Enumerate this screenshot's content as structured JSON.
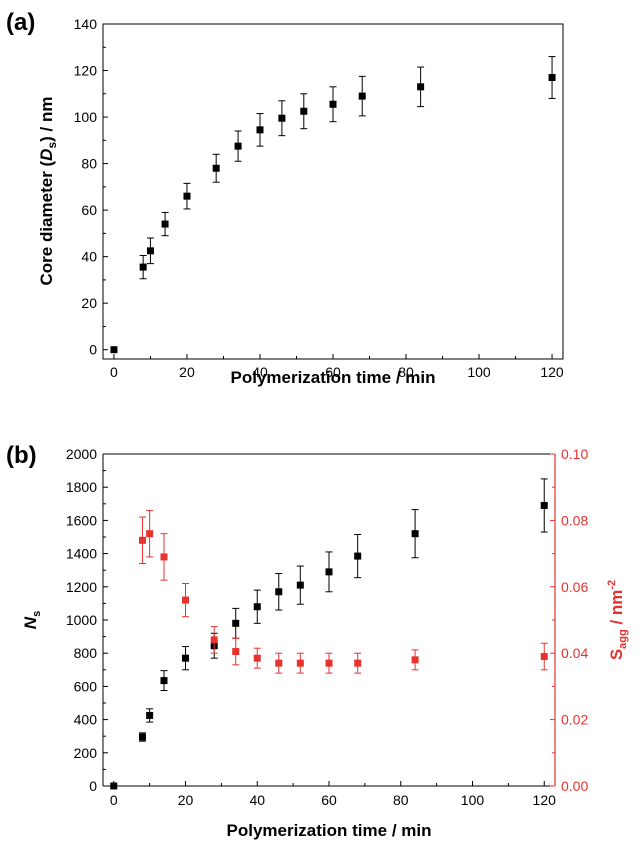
{
  "chart_data": [
    {
      "panel_label": "(a)",
      "type": "scatter",
      "xlabel": "Polymerization time / min",
      "ylabel_prefix": "Core diameter (",
      "ylabel_italic": "D",
      "ylabel_sub": "s",
      "ylabel_suffix": ") / nm",
      "xlim": [
        -3,
        123
      ],
      "ylim": [
        -4,
        140
      ],
      "xticks": [
        0,
        20,
        40,
        60,
        80,
        100,
        120
      ],
      "yticks": [
        0,
        20,
        40,
        60,
        80,
        100,
        120,
        140
      ],
      "series": [
        {
          "color": "#000000",
          "x": [
            0,
            8,
            10,
            14,
            20,
            28,
            34,
            40,
            46,
            52,
            60,
            68,
            84,
            120
          ],
          "y": [
            0,
            35.5,
            42.5,
            54,
            66,
            78,
            87.5,
            94.5,
            99.5,
            102.5,
            105.5,
            109,
            113,
            117
          ],
          "err": [
            0,
            5,
            5.5,
            5,
            5.5,
            6,
            6.5,
            7,
            7.5,
            7.5,
            7.5,
            8.5,
            8.5,
            9
          ]
        }
      ]
    },
    {
      "panel_label": "(b)",
      "type": "scatter",
      "xlabel": "Polymerization time / min",
      "ylabel_left_italic": "N",
      "ylabel_left_sub": "s",
      "ylabel_right_main": "S",
      "ylabel_right_sub": "agg",
      "ylabel_right_suffix": " / nm",
      "ylabel_right_sup": "-2",
      "xlim": [
        -3,
        123
      ],
      "ylim_left": [
        0,
        2000
      ],
      "ylim_right": [
        0,
        0.1
      ],
      "xticks": [
        0,
        20,
        40,
        60,
        80,
        100,
        120
      ],
      "yticks_left": [
        0,
        200,
        400,
        600,
        800,
        1000,
        1200,
        1400,
        1600,
        1800,
        2000
      ],
      "yticks_right": [
        "0.00",
        "0.02",
        "0.04",
        "0.06",
        "0.08",
        "0.10"
      ],
      "series": [
        {
          "axis": "left",
          "color": "#000000",
          "x": [
            0,
            8,
            10,
            14,
            20,
            28,
            34,
            40,
            46,
            52,
            60,
            68,
            84,
            120
          ],
          "y": [
            0,
            295,
            425,
            635,
            770,
            845,
            980,
            1080,
            1170,
            1210,
            1290,
            1385,
            1520,
            1690
          ],
          "err": [
            0,
            25,
            40,
            60,
            70,
            75,
            90,
            100,
            110,
            115,
            120,
            130,
            145,
            160
          ]
        },
        {
          "axis": "right",
          "color": "#e8322e",
          "x": [
            8,
            10,
            14,
            20,
            28,
            34,
            40,
            46,
            52,
            60,
            68,
            84,
            120
          ],
          "y": [
            0.074,
            0.076,
            0.069,
            0.056,
            0.044,
            0.0405,
            0.0385,
            0.037,
            0.037,
            0.037,
            0.037,
            0.038,
            0.039
          ],
          "err": [
            0.007,
            0.007,
            0.007,
            0.005,
            0.004,
            0.004,
            0.003,
            0.003,
            0.003,
            0.003,
            0.003,
            0.003,
            0.004
          ]
        }
      ]
    }
  ]
}
